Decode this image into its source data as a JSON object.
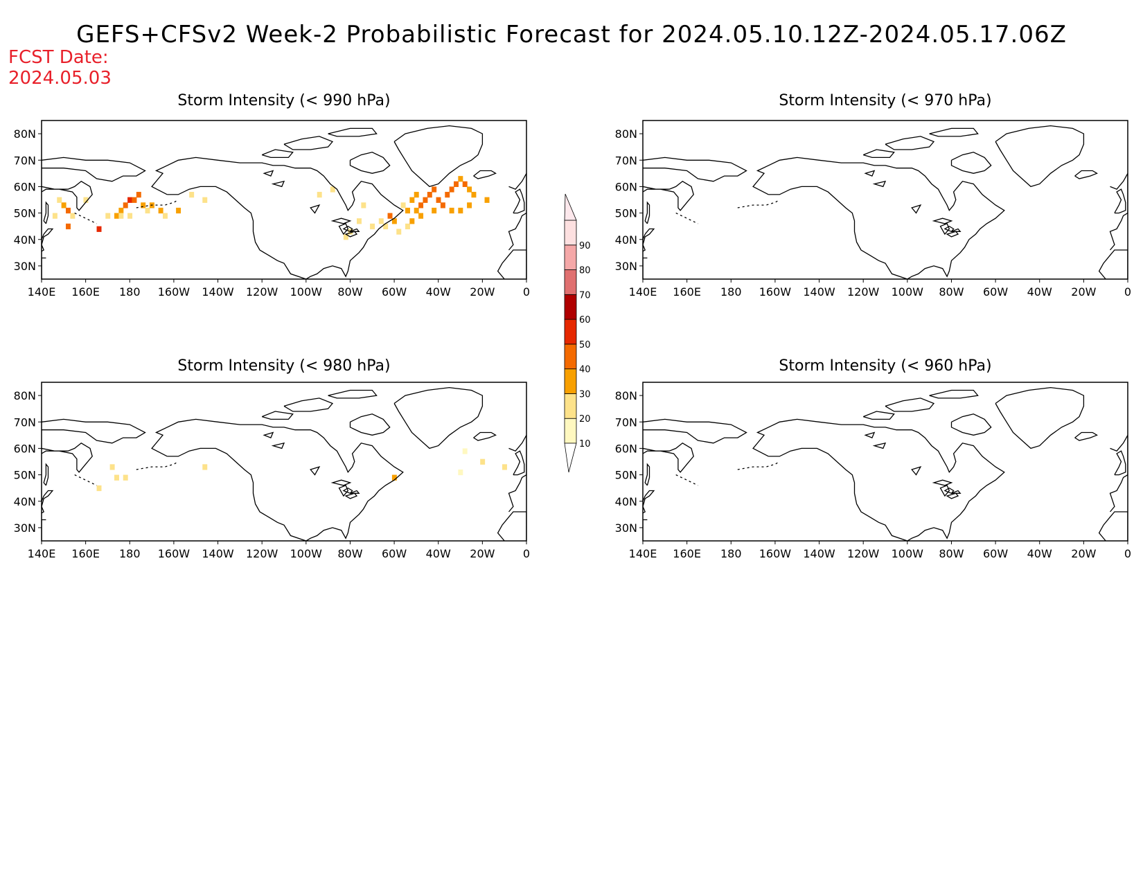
{
  "title": "GEFS+CFSv2 Week-2 Probabilistic Forecast for 2024.05.10.12Z-2024.05.17.06Z",
  "fcst_date_label": "FCST Date:",
  "fcst_date": "2024.05.03",
  "lon_ticks": [
    "140E",
    "160E",
    "180",
    "160W",
    "140W",
    "120W",
    "100W",
    "80W",
    "60W",
    "40W",
    "20W",
    "0"
  ],
  "lat_ticks": [
    "80N",
    "70N",
    "60N",
    "50N",
    "40N",
    "30N"
  ],
  "lat_values": [
    80,
    70,
    60,
    50,
    40,
    30
  ],
  "lon_values": [
    140,
    160,
    180,
    200,
    220,
    240,
    260,
    280,
    300,
    320,
    340,
    360
  ],
  "domain": {
    "lon_range": [
      140,
      360
    ],
    "lat_range": [
      25,
      85
    ]
  },
  "colorbar": {
    "levels": [
      10,
      20,
      30,
      40,
      50,
      60,
      70,
      80,
      90
    ],
    "colors": [
      "#fff8c0",
      "#fde28a",
      "#f8a000",
      "#f46a00",
      "#e62800",
      "#b00000",
      "#e07070",
      "#f5a8a8",
      "#fde0e0"
    ]
  },
  "panels": [
    {
      "title": "Storm Intensity (< 990 hPa)",
      "cells": [
        {
          "lon": 150,
          "lat": 53,
          "v": 30
        },
        {
          "lon": 148,
          "lat": 55,
          "v": 20
        },
        {
          "lon": 152,
          "lat": 51,
          "v": 40
        },
        {
          "lon": 154,
          "lat": 49,
          "v": 20
        },
        {
          "lon": 146,
          "lat": 49,
          "v": 20
        },
        {
          "lon": 152,
          "lat": 45,
          "v": 40
        },
        {
          "lon": 160,
          "lat": 55,
          "v": 20
        },
        {
          "lon": 166,
          "lat": 44,
          "v": 50
        },
        {
          "lon": 170,
          "lat": 49,
          "v": 20
        },
        {
          "lon": 174,
          "lat": 49,
          "v": 30
        },
        {
          "lon": 176,
          "lat": 51,
          "v": 30
        },
        {
          "lon": 178,
          "lat": 53,
          "v": 40
        },
        {
          "lon": 180,
          "lat": 55,
          "v": 50
        },
        {
          "lon": 182,
          "lat": 55,
          "v": 40
        },
        {
          "lon": 184,
          "lat": 57,
          "v": 40
        },
        {
          "lon": 186,
          "lat": 53,
          "v": 30
        },
        {
          "lon": 188,
          "lat": 51,
          "v": 20
        },
        {
          "lon": 190,
          "lat": 53,
          "v": 30
        },
        {
          "lon": 194,
          "lat": 51,
          "v": 30
        },
        {
          "lon": 196,
          "lat": 49,
          "v": 20
        },
        {
          "lon": 202,
          "lat": 51,
          "v": 30
        },
        {
          "lon": 180,
          "lat": 49,
          "v": 20
        },
        {
          "lon": 176,
          "lat": 49,
          "v": 20
        },
        {
          "lon": 208,
          "lat": 57,
          "v": 20
        },
        {
          "lon": 214,
          "lat": 55,
          "v": 20
        },
        {
          "lon": 266,
          "lat": 57,
          "v": 20
        },
        {
          "lon": 272,
          "lat": 59,
          "v": 20
        },
        {
          "lon": 286,
          "lat": 53,
          "v": 20
        },
        {
          "lon": 284,
          "lat": 47,
          "v": 20
        },
        {
          "lon": 280,
          "lat": 43,
          "v": 20
        },
        {
          "lon": 278,
          "lat": 41,
          "v": 20
        },
        {
          "lon": 290,
          "lat": 45,
          "v": 20
        },
        {
          "lon": 294,
          "lat": 47,
          "v": 20
        },
        {
          "lon": 296,
          "lat": 45,
          "v": 20
        },
        {
          "lon": 298,
          "lat": 49,
          "v": 40
        },
        {
          "lon": 300,
          "lat": 47,
          "v": 30
        },
        {
          "lon": 302,
          "lat": 43,
          "v": 20
        },
        {
          "lon": 306,
          "lat": 45,
          "v": 20
        },
        {
          "lon": 308,
          "lat": 47,
          "v": 30
        },
        {
          "lon": 306,
          "lat": 51,
          "v": 30
        },
        {
          "lon": 308,
          "lat": 55,
          "v": 30
        },
        {
          "lon": 310,
          "lat": 57,
          "v": 30
        },
        {
          "lon": 312,
          "lat": 53,
          "v": 40
        },
        {
          "lon": 314,
          "lat": 55,
          "v": 40
        },
        {
          "lon": 316,
          "lat": 57,
          "v": 40
        },
        {
          "lon": 318,
          "lat": 59,
          "v": 40
        },
        {
          "lon": 320,
          "lat": 55,
          "v": 40
        },
        {
          "lon": 322,
          "lat": 53,
          "v": 40
        },
        {
          "lon": 324,
          "lat": 57,
          "v": 40
        },
        {
          "lon": 326,
          "lat": 59,
          "v": 40
        },
        {
          "lon": 328,
          "lat": 61,
          "v": 40
        },
        {
          "lon": 330,
          "lat": 63,
          "v": 30
        },
        {
          "lon": 332,
          "lat": 61,
          "v": 40
        },
        {
          "lon": 334,
          "lat": 59,
          "v": 30
        },
        {
          "lon": 336,
          "lat": 57,
          "v": 30
        },
        {
          "lon": 330,
          "lat": 51,
          "v": 30
        },
        {
          "lon": 326,
          "lat": 51,
          "v": 30
        },
        {
          "lon": 318,
          "lat": 51,
          "v": 30
        },
        {
          "lon": 312,
          "lat": 49,
          "v": 30
        },
        {
          "lon": 342,
          "lat": 55,
          "v": 30
        },
        {
          "lon": 334,
          "lat": 53,
          "v": 30
        },
        {
          "lon": 310,
          "lat": 51,
          "v": 30
        },
        {
          "lon": 304,
          "lat": 53,
          "v": 20
        }
      ]
    },
    {
      "title": "Storm Intensity (< 970 hPa)",
      "cells": []
    },
    {
      "title": "Storm Intensity (< 980 hPa)",
      "cells": [
        {
          "lon": 172,
          "lat": 53,
          "v": 20
        },
        {
          "lon": 178,
          "lat": 49,
          "v": 20
        },
        {
          "lon": 174,
          "lat": 49,
          "v": 20
        },
        {
          "lon": 166,
          "lat": 45,
          "v": 20
        },
        {
          "lon": 214,
          "lat": 53,
          "v": 20
        },
        {
          "lon": 300,
          "lat": 49,
          "v": 30
        },
        {
          "lon": 340,
          "lat": 55,
          "v": 20
        },
        {
          "lon": 350,
          "lat": 53,
          "v": 20
        },
        {
          "lon": 332,
          "lat": 59,
          "v": 10
        },
        {
          "lon": 330,
          "lat": 51,
          "v": 10
        }
      ]
    },
    {
      "title": "Storm Intensity (< 960 hPa)",
      "cells": []
    }
  ]
}
